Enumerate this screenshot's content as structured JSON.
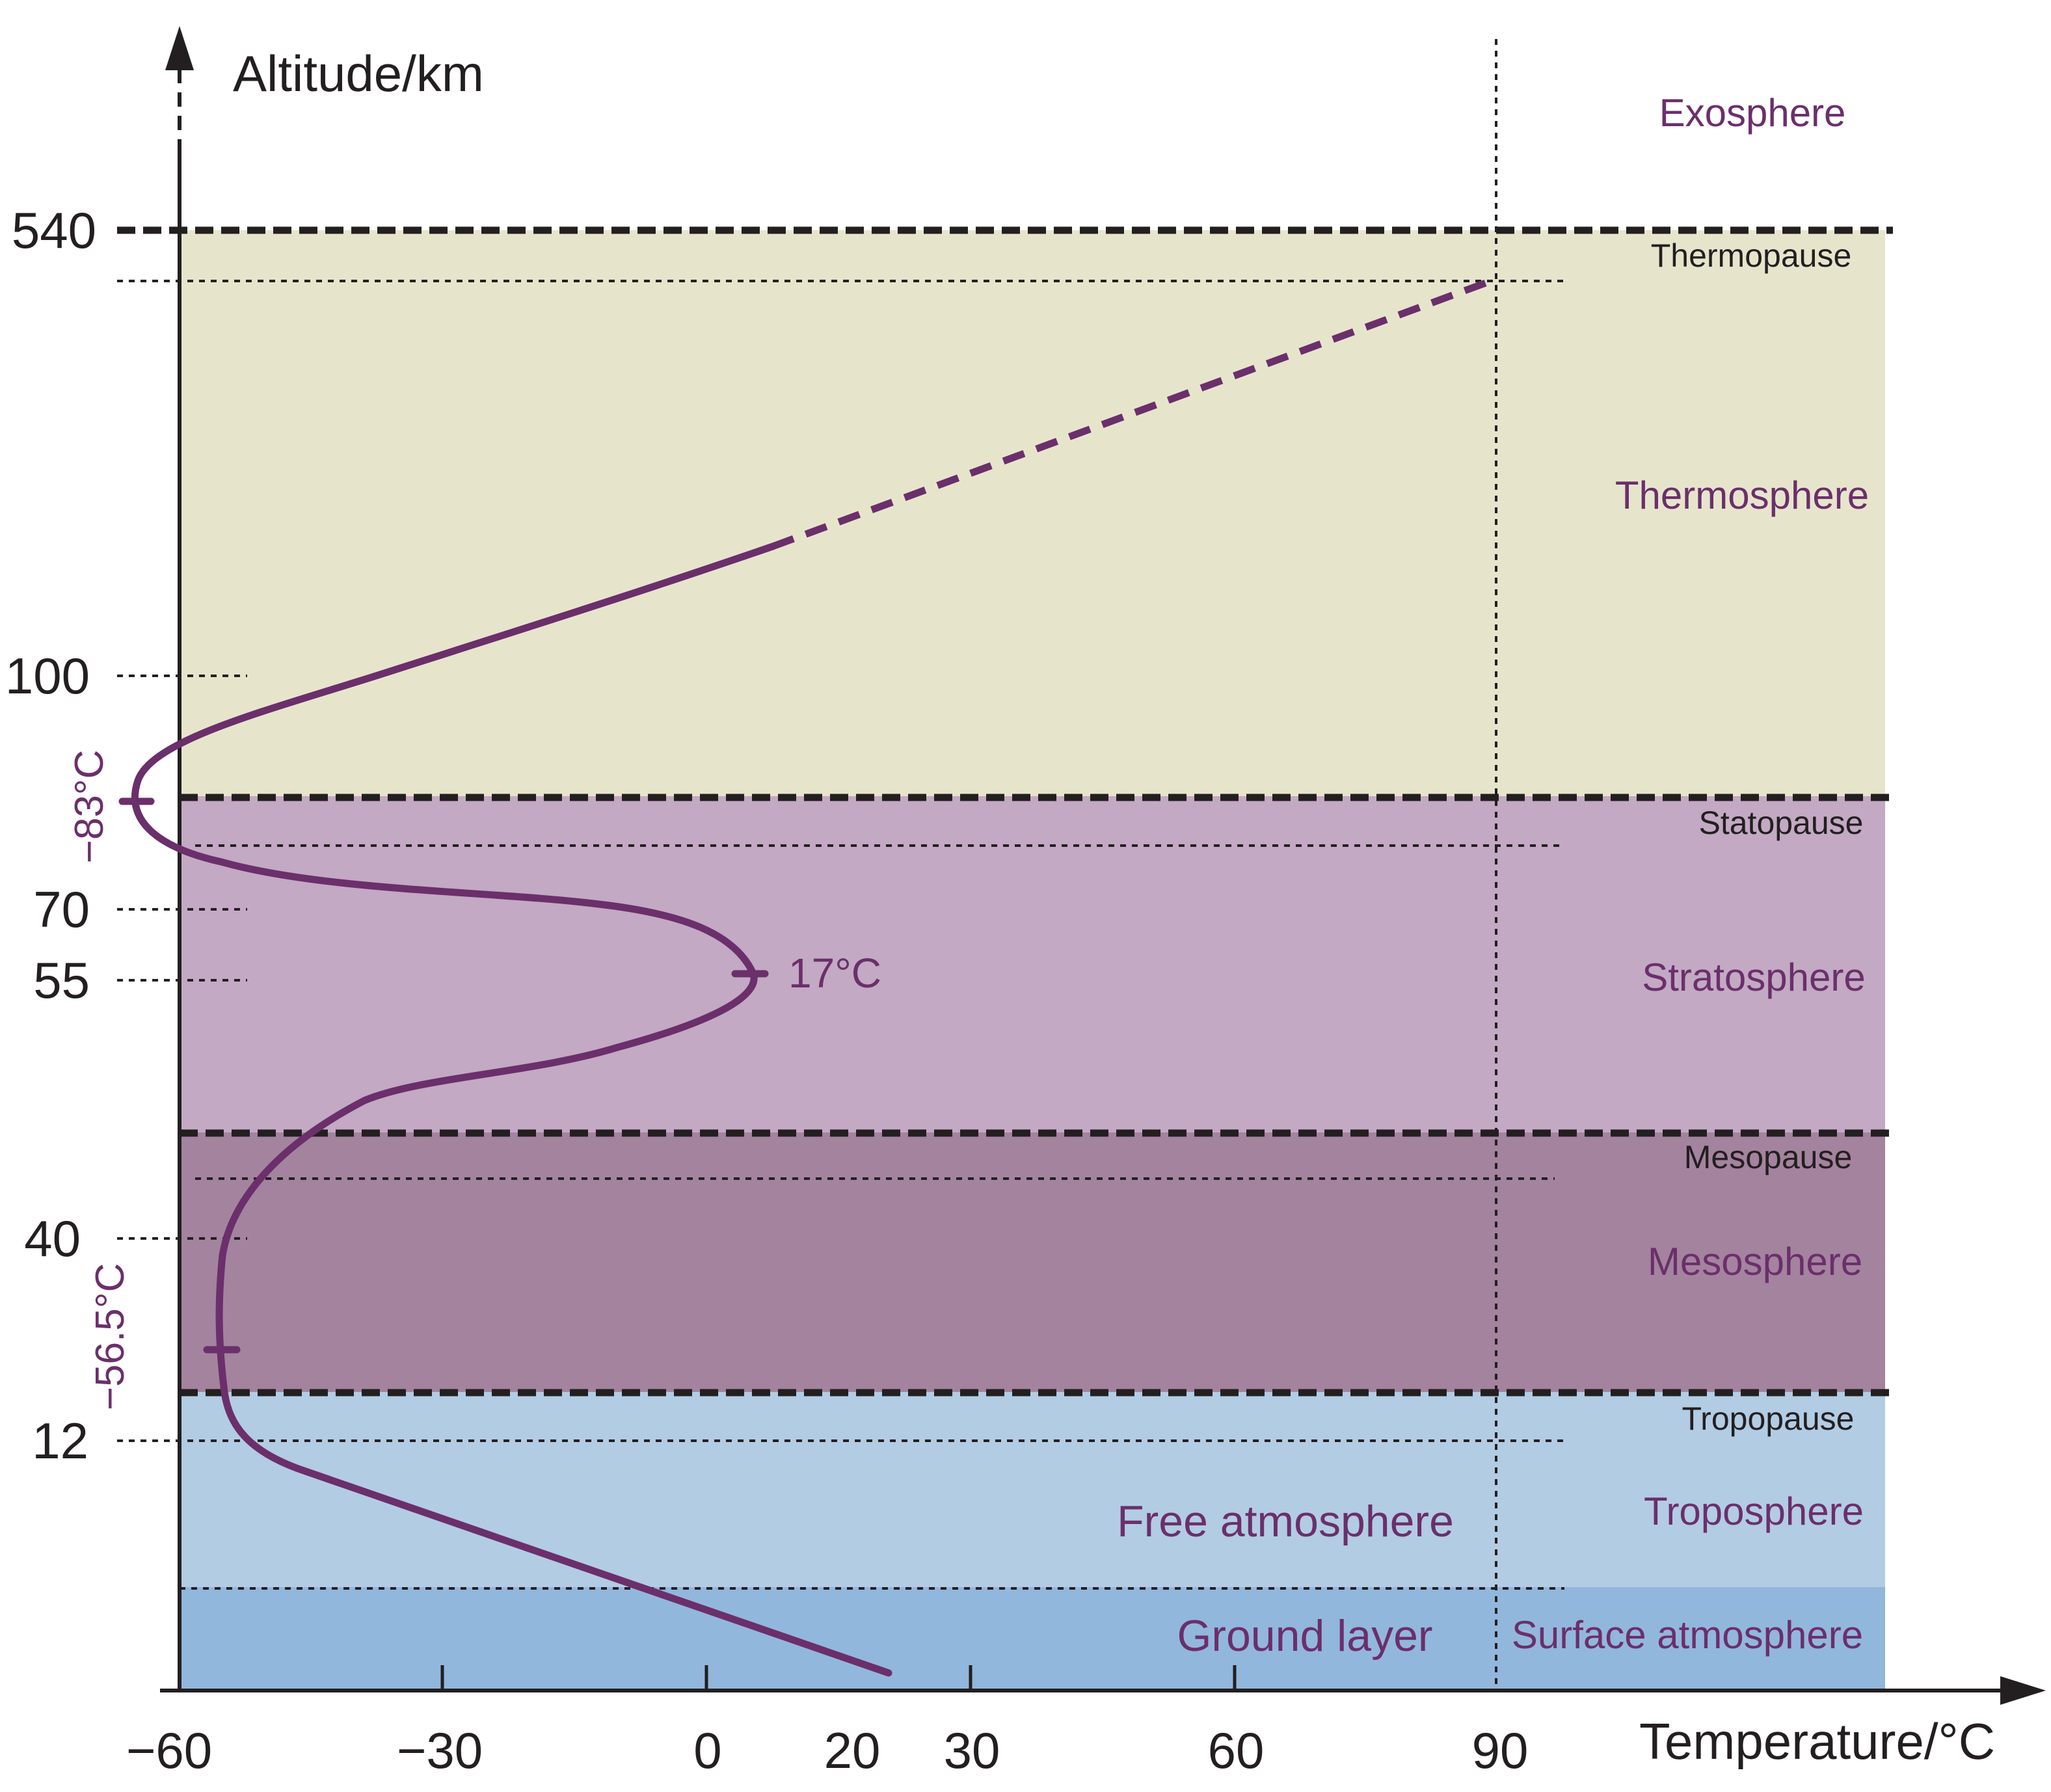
{
  "axes": {
    "y_title": "Altitude/km",
    "x_title": "Temperature/°C",
    "y_ticks": [
      "540",
      "100",
      "70",
      "55",
      "40",
      "12"
    ],
    "x_ticks": [
      "−60",
      "−30",
      "0",
      "20",
      "30",
      "60",
      "90"
    ]
  },
  "layers": {
    "exosphere": "Exosphere",
    "thermosphere": "Thermosphere",
    "stratosphere": "Stratosphere",
    "mesosphere": "Mesosphere",
    "troposphere": "Troposphere",
    "free_atmosphere": "Free atmosphere",
    "ground_layer": "Ground layer",
    "surface_atmosphere": "Surface atmosphere"
  },
  "pauses": {
    "thermopause": "Thermopause",
    "statopause": "Statopause",
    "mesopause": "Mesopause",
    "tropopause": "Tropopause"
  },
  "annotations": {
    "min_upper": "−83°C",
    "max_middle": "17°C",
    "min_lower": "−56.5°C"
  },
  "colors": {
    "thermosphere_band": "#e6e5cc",
    "stratosphere_band": "#c3a9c3",
    "mesosphere_band": "#a4839f",
    "troposphere_band": "#b2cce4",
    "ground_band": "#92b7dc",
    "curve": "#6b2f6b",
    "label": "#6b2f6b"
  }
}
